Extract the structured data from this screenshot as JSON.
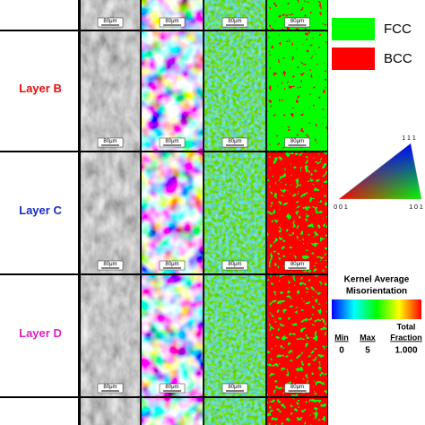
{
  "rows": [
    {
      "label": "Layer B",
      "color": "#e01010"
    },
    {
      "label": "Layer C",
      "color": "#1a2cc4"
    },
    {
      "label": "Layer D",
      "color": "#e020c8"
    }
  ],
  "scale_bar": "80μm",
  "legend": {
    "phases": [
      {
        "label": "FCC",
        "color": "#00ff00"
      },
      {
        "label": "BCC",
        "color": "#ff0000"
      }
    ],
    "ipf_triangle": {
      "top": "1 1 1",
      "left": "0 0 1",
      "right": "1 0 1"
    },
    "kam": {
      "title": [
        "Kernel Average",
        "Misorientation"
      ],
      "min_label": "Min",
      "max_label": "Max",
      "fraction_label": [
        "Total",
        "Fraction"
      ],
      "min": "0",
      "max": "5",
      "fraction": "1.000"
    }
  }
}
